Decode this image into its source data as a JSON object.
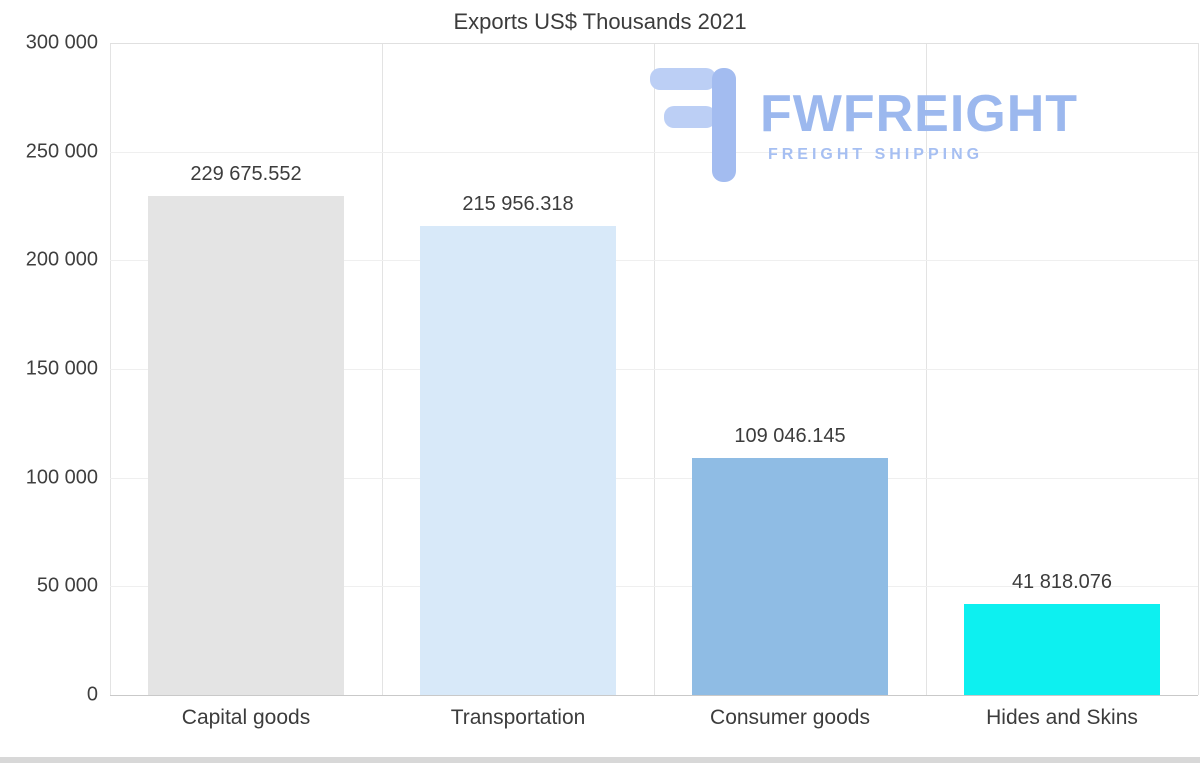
{
  "title": "Exports US$ Thousands 2021",
  "watermark": {
    "brand": "FWFREIGHT",
    "tagline": "FREIGHT SHIPPING",
    "brand_color": "#9cb8ee",
    "tagline_color": "#a6bff2",
    "icon": "fwfreight-logo-icon",
    "icon_color_light": "#bccff5",
    "icon_color_dark": "#a3bcf0"
  },
  "chart_data": {
    "type": "bar",
    "title": "Exports US$ Thousands 2021",
    "categories": [
      "Capital goods",
      "Transportation",
      "Consumer goods",
      "Hides and Skins"
    ],
    "values": [
      229675.552,
      215956.318,
      109046.145,
      41818.076
    ],
    "value_labels": [
      "229 675.552",
      "215 956.318",
      "109 046.145",
      "41 818.076"
    ],
    "bar_colors": [
      "#e4e4e4",
      "#d8e9f9",
      "#8fbce4",
      "#0df0f0"
    ],
    "xlabel": "",
    "ylabel": "",
    "ylim": [
      0,
      300000
    ],
    "y_ticks": [
      0,
      50000,
      100000,
      150000,
      200000,
      250000,
      300000
    ],
    "y_tick_labels": [
      "0",
      "50 000",
      "100 000",
      "150 000",
      "200 000",
      "250 000",
      "300 000"
    ],
    "grid": "light horizontal gridlines + vertical category separators",
    "legend": "none"
  }
}
